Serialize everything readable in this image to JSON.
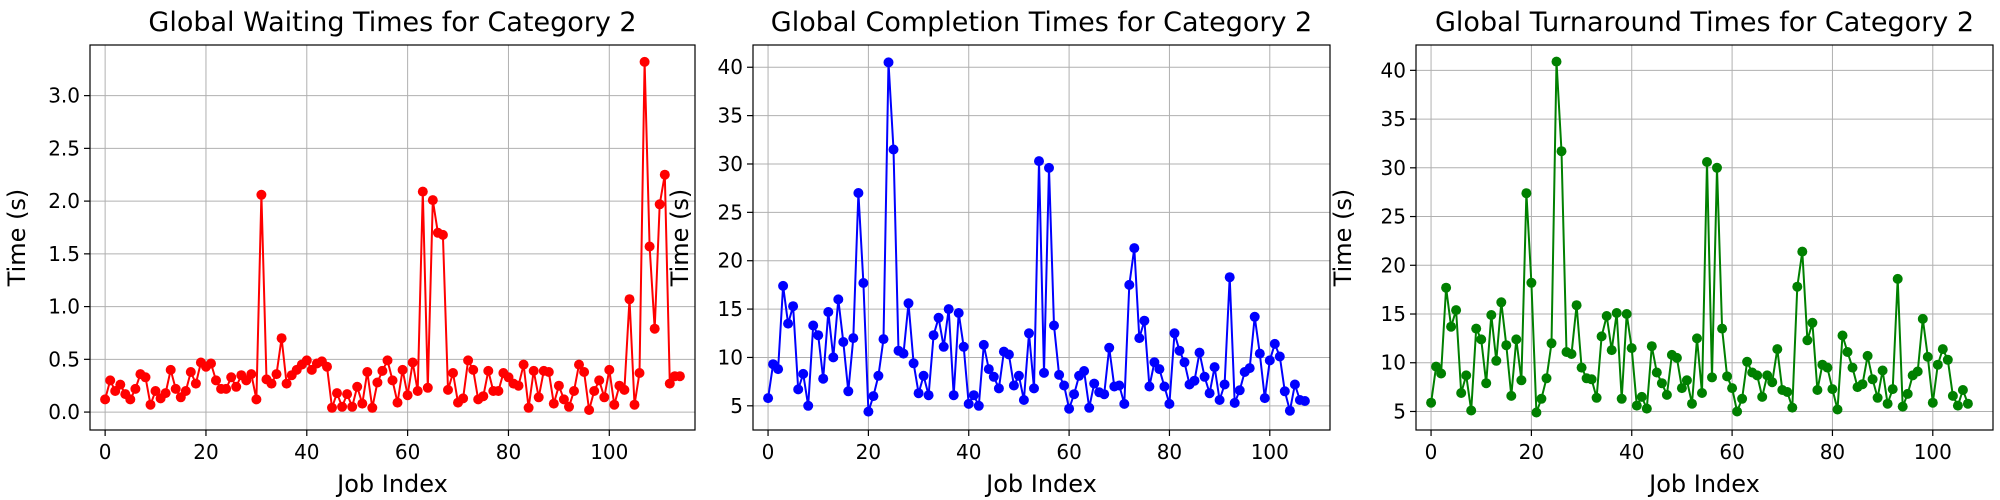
{
  "chart_data": [
    {
      "type": "line",
      "title": "Global Waiting Times for Category 2",
      "xlabel": "Job Index",
      "ylabel": "Time (s)",
      "xlim": [
        -3,
        117
      ],
      "ylim": [
        -0.17,
        3.48
      ],
      "xticks": [
        0,
        20,
        40,
        60,
        80,
        100
      ],
      "yticks": [
        0.0,
        0.5,
        1.0,
        1.5,
        2.0,
        2.5,
        3.0
      ],
      "ytick_labels": [
        "0.0",
        "0.5",
        "1.0",
        "1.5",
        "2.0",
        "2.5",
        "3.0"
      ],
      "grid": true,
      "color": "#ff0000",
      "x": [
        0,
        1,
        2,
        3,
        4,
        5,
        6,
        7,
        8,
        9,
        10,
        11,
        12,
        13,
        14,
        15,
        16,
        17,
        18,
        19,
        20,
        21,
        22,
        23,
        24,
        25,
        26,
        27,
        28,
        29,
        30,
        31,
        32,
        33,
        34,
        35,
        36,
        37,
        38,
        39,
        40,
        41,
        42,
        43,
        44,
        45,
        46,
        47,
        48,
        49,
        50,
        51,
        52,
        53,
        54,
        55,
        56,
        57,
        58,
        59,
        60,
        61,
        62,
        63,
        64,
        65,
        66,
        67,
        68,
        69,
        70,
        71,
        72,
        73,
        74,
        75,
        76,
        77,
        78,
        79,
        80,
        81,
        82,
        83,
        84,
        85,
        86,
        87,
        88,
        89,
        90,
        91,
        92,
        93,
        94,
        95,
        96,
        97,
        98,
        99,
        100,
        101,
        102,
        103,
        104,
        105,
        106,
        107,
        108,
        109,
        110,
        111,
        112,
        113,
        114
      ],
      "y": [
        0.12,
        0.3,
        0.2,
        0.26,
        0.17,
        0.12,
        0.22,
        0.36,
        0.33,
        0.07,
        0.2,
        0.13,
        0.18,
        0.4,
        0.22,
        0.14,
        0.2,
        0.38,
        0.27,
        0.47,
        0.43,
        0.46,
        0.3,
        0.22,
        0.22,
        0.33,
        0.24,
        0.35,
        0.3,
        0.36,
        0.12,
        2.06,
        0.31,
        0.27,
        0.36,
        0.7,
        0.27,
        0.35,
        0.4,
        0.45,
        0.49,
        0.4,
        0.46,
        0.48,
        0.43,
        0.04,
        0.18,
        0.05,
        0.17,
        0.05,
        0.24,
        0.08,
        0.38,
        0.04,
        0.28,
        0.39,
        0.49,
        0.3,
        0.09,
        0.4,
        0.16,
        0.47,
        0.2,
        2.09,
        0.23,
        2.01,
        1.7,
        1.68,
        0.21,
        0.37,
        0.09,
        0.13,
        0.49,
        0.4,
        0.12,
        0.15,
        0.39,
        0.2,
        0.2,
        0.37,
        0.33,
        0.27,
        0.25,
        0.45,
        0.04,
        0.39,
        0.14,
        0.39,
        0.38,
        0.08,
        0.25,
        0.12,
        0.05,
        0.2,
        0.45,
        0.38,
        0.02,
        0.2,
        0.3,
        0.14,
        0.4,
        0.07,
        0.25,
        0.21,
        1.07,
        0.07,
        0.37,
        3.32,
        1.57,
        0.79,
        1.97,
        2.25,
        0.27,
        0.34,
        0.34
      ]
    },
    {
      "type": "line",
      "title": "Global Completion Times for Category 2",
      "xlabel": "Job Index",
      "ylabel": "Time (s)",
      "xlim": [
        -3,
        112
      ],
      "ylim": [
        2.5,
        42.3
      ],
      "xticks": [
        0,
        20,
        40,
        60,
        80,
        100
      ],
      "yticks": [
        5,
        10,
        15,
        20,
        25,
        30,
        35,
        40
      ],
      "ytick_labels": [
        "5",
        "10",
        "15",
        "20",
        "25",
        "30",
        "35",
        "40"
      ],
      "grid": true,
      "color": "#0000ff",
      "x": [
        0,
        1,
        2,
        3,
        4,
        5,
        6,
        7,
        8,
        9,
        10,
        11,
        12,
        13,
        14,
        15,
        16,
        17,
        18,
        19,
        20,
        21,
        22,
        23,
        24,
        25,
        26,
        27,
        28,
        29,
        30,
        31,
        32,
        33,
        34,
        35,
        36,
        37,
        38,
        39,
        40,
        41,
        42,
        43,
        44,
        45,
        46,
        47,
        48,
        49,
        50,
        51,
        52,
        53,
        54,
        55,
        56,
        57,
        58,
        59,
        60,
        61,
        62,
        63,
        64,
        65,
        66,
        67,
        68,
        69,
        70,
        71,
        72,
        73,
        74,
        75,
        76,
        77,
        78,
        79,
        80,
        81,
        82,
        83,
        84,
        85,
        86,
        87,
        88,
        89,
        90,
        91,
        92,
        93,
        94,
        95,
        96,
        97,
        98,
        99,
        100,
        101,
        102,
        103,
        104,
        105,
        106,
        107
      ],
      "y": [
        5.8,
        9.3,
        8.8,
        17.4,
        13.5,
        15.3,
        6.7,
        8.3,
        5,
        13.3,
        12.3,
        7.8,
        14.7,
        10,
        16,
        11.6,
        6.5,
        12,
        27,
        17.7,
        4.4,
        6,
        8.1,
        11.9,
        40.5,
        31.5,
        10.7,
        10.4,
        15.6,
        9.4,
        6.3,
        8.1,
        6.1,
        12.3,
        14.1,
        11.1,
        15,
        6.1,
        14.6,
        11.1,
        5.2,
        6.1,
        5,
        11.3,
        8.8,
        8,
        6.8,
        10.6,
        10.3,
        7.1,
        8.1,
        5.6,
        12.5,
        6.8,
        30.3,
        8.4,
        29.6,
        13.3,
        8.2,
        7.1,
        4.7,
        6.2,
        8.1,
        8.6,
        4.8,
        7.3,
        6.4,
        6.2,
        11,
        7,
        7.1,
        5.2,
        17.5,
        21.3,
        12,
        13.8,
        7,
        9.5,
        8.8,
        7,
        5.2,
        12.5,
        10.7,
        9.5,
        7.2,
        7.6,
        10.5,
        8,
        6.3,
        9,
        5.6,
        7.2,
        18.3,
        5.3,
        6.6,
        8.5,
        8.9,
        14.2,
        10.4,
        5.8,
        9.7,
        11.4,
        10.1,
        6.5,
        4.5,
        7.2,
        5.6,
        5.5
      ]
    },
    {
      "type": "line",
      "title": "Global Turnaround Times for Category 2",
      "xlabel": "Job Index",
      "ylabel": "Time (s)",
      "xlim": [
        -3,
        112
      ],
      "ylim": [
        3.1,
        42.6
      ],
      "xticks": [
        0,
        20,
        40,
        60,
        80,
        100
      ],
      "yticks": [
        5,
        10,
        15,
        20,
        25,
        30,
        35,
        40
      ],
      "ytick_labels": [
        "5",
        "10",
        "15",
        "20",
        "25",
        "30",
        "35",
        "40"
      ],
      "grid": true,
      "color": "#008000",
      "x": [
        0,
        1,
        2,
        3,
        4,
        5,
        6,
        7,
        8,
        9,
        10,
        11,
        12,
        13,
        14,
        15,
        16,
        17,
        18,
        19,
        20,
        21,
        22,
        23,
        24,
        25,
        26,
        27,
        28,
        29,
        30,
        31,
        32,
        33,
        34,
        35,
        36,
        37,
        38,
        39,
        40,
        41,
        42,
        43,
        44,
        45,
        46,
        47,
        48,
        49,
        50,
        51,
        52,
        53,
        54,
        55,
        56,
        57,
        58,
        59,
        60,
        61,
        62,
        63,
        64,
        65,
        66,
        67,
        68,
        69,
        70,
        71,
        72,
        73,
        74,
        75,
        76,
        77,
        78,
        79,
        80,
        81,
        82,
        83,
        84,
        85,
        86,
        87,
        88,
        89,
        90,
        91,
        92,
        93,
        94,
        95,
        96,
        97,
        98,
        99,
        100,
        101,
        102,
        103,
        104,
        105,
        106,
        107
      ],
      "y": [
        5.9,
        9.6,
        8.9,
        17.7,
        13.7,
        15.4,
        6.9,
        8.7,
        5.1,
        13.5,
        12.4,
        7.9,
        14.9,
        10.2,
        16.2,
        11.8,
        6.6,
        12.4,
        8.2,
        27.4,
        18.2,
        4.9,
        6.3,
        8.4,
        12,
        40.9,
        31.7,
        11.1,
        10.9,
        15.9,
        9.5,
        8.4,
        8.3,
        6.4,
        12.7,
        14.8,
        11.3,
        15.1,
        6.3,
        15,
        11.5,
        5.6,
        6.5,
        5.3,
        11.7,
        9,
        7.9,
        6.7,
        10.8,
        10.5,
        7.4,
        8.2,
        5.8,
        12.5,
        6.9,
        30.6,
        8.5,
        30,
        13.5,
        8.6,
        7.4,
        5,
        6.3,
        10.1,
        9,
        8.7,
        6.5,
        8.7,
        8,
        11.4,
        7.2,
        7,
        5.4,
        17.8,
        21.4,
        12.3,
        14.1,
        7.2,
        9.8,
        9.5,
        7.3,
        5.2,
        12.8,
        11.1,
        9.5,
        7.5,
        7.8,
        10.7,
        8.3,
        6.4,
        9.2,
        5.8,
        7.3,
        18.6,
        5.5,
        6.8,
        8.7,
        9.1,
        14.5,
        10.6,
        5.9,
        9.8,
        11.4,
        10.3,
        6.6,
        5.6,
        7.2,
        5.8
      ]
    }
  ]
}
